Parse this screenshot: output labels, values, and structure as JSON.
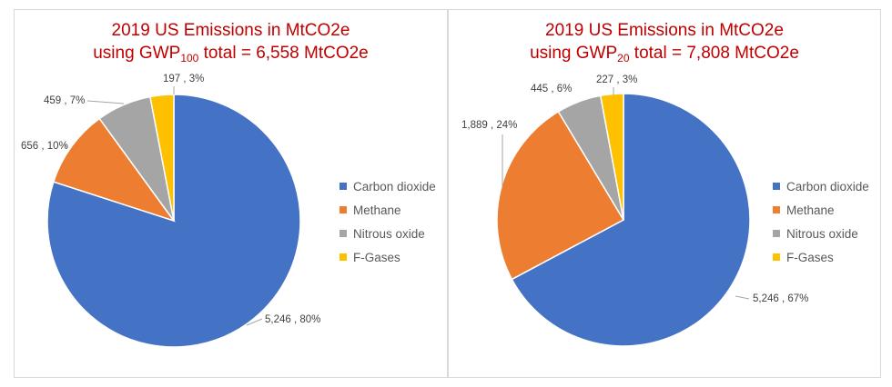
{
  "chart_data": [
    {
      "type": "pie",
      "title_line1": "2019 US Emissions in MtCO2e",
      "title_prefix": "using GWP",
      "title_sub": "100",
      "title_suffix": " total = 6,558 MtCO2e",
      "categories": [
        "Carbon dioxide",
        "Methane",
        "Nitrous oxide",
        "F-Gases"
      ],
      "values": [
        5246,
        656,
        459,
        197
      ],
      "labels": [
        "5,246 , 80%",
        "656 , 10%",
        "459 , 7%",
        "197 , 3%"
      ],
      "legend_position": "right"
    },
    {
      "type": "pie",
      "title_line1": "2019 US Emissions in MtCO2e",
      "title_prefix": "using GWP",
      "title_sub": "20",
      "title_suffix": " total = 7,808 MtCO2e",
      "categories": [
        "Carbon dioxide",
        "Methane",
        "Nitrous oxide",
        "F-Gases"
      ],
      "values": [
        5246,
        1889,
        445,
        227
      ],
      "labels": [
        "5,246 , 67%",
        "1,889 , 24%",
        "445 , 6%",
        "227 , 3%"
      ],
      "legend_position": "right"
    }
  ],
  "colors": [
    "#4472c4",
    "#ed7d31",
    "#a5a5a5",
    "#ffc000"
  ]
}
